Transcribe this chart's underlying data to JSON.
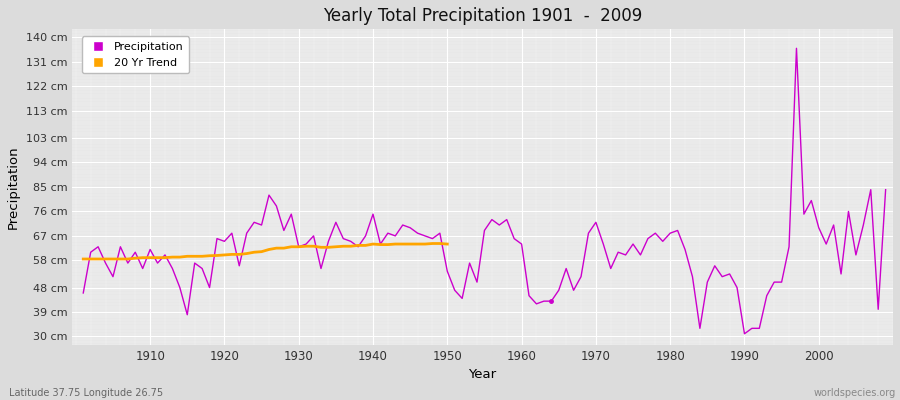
{
  "title": "Yearly Total Precipitation 1901  -  2009",
  "xlabel": "Year",
  "ylabel": "Precipitation",
  "subtitle": "Latitude 37.75 Longitude 26.75",
  "watermark": "worldspecies.org",
  "line_color": "#CC00CC",
  "trend_color": "#FFA500",
  "bg_color": "#DCDCDC",
  "plot_bg_color": "#E8E8E8",
  "ytick_labels": [
    "30 cm",
    "39 cm",
    "48 cm",
    "58 cm",
    "67 cm",
    "76 cm",
    "85 cm",
    "94 cm",
    "103 cm",
    "113 cm",
    "122 cm",
    "131 cm",
    "140 cm"
  ],
  "ytick_values": [
    30,
    39,
    48,
    58,
    67,
    76,
    85,
    94,
    103,
    113,
    122,
    131,
    140
  ],
  "ylim": [
    27,
    143
  ],
  "xlim": [
    1899.5,
    2010
  ],
  "years": [
    1901,
    1902,
    1903,
    1904,
    1905,
    1906,
    1907,
    1908,
    1909,
    1910,
    1911,
    1912,
    1913,
    1914,
    1915,
    1916,
    1917,
    1918,
    1919,
    1920,
    1921,
    1922,
    1923,
    1924,
    1925,
    1926,
    1927,
    1928,
    1929,
    1930,
    1931,
    1932,
    1933,
    1934,
    1935,
    1936,
    1937,
    1938,
    1939,
    1940,
    1941,
    1942,
    1943,
    1944,
    1945,
    1946,
    1947,
    1948,
    1949,
    1950,
    1951,
    1952,
    1953,
    1954,
    1955,
    1956,
    1957,
    1958,
    1959,
    1960,
    1961,
    1962,
    1963,
    1964,
    1965,
    1966,
    1967,
    1968,
    1969,
    1970,
    1971,
    1972,
    1973,
    1974,
    1975,
    1976,
    1977,
    1978,
    1979,
    1980,
    1981,
    1982,
    1983,
    1984,
    1985,
    1986,
    1987,
    1988,
    1989,
    1990,
    1991,
    1992,
    1993,
    1994,
    1995,
    1996,
    1997,
    1998,
    1999,
    2000,
    2001,
    2002,
    2003,
    2004,
    2005,
    2006,
    2007,
    2008,
    2009
  ],
  "precip": [
    46,
    61,
    63,
    57,
    52,
    63,
    57,
    61,
    55,
    62,
    57,
    60,
    55,
    48,
    38,
    57,
    55,
    48,
    66,
    65,
    68,
    56,
    68,
    72,
    71,
    82,
    78,
    69,
    75,
    63,
    64,
    67,
    55,
    65,
    72,
    66,
    65,
    63,
    67,
    75,
    64,
    68,
    67,
    71,
    70,
    68,
    67,
    66,
    68,
    54,
    47,
    44,
    57,
    50,
    69,
    73,
    71,
    73,
    66,
    64,
    45,
    42,
    43,
    43,
    47,
    55,
    47,
    52,
    68,
    72,
    64,
    55,
    61,
    60,
    64,
    60,
    66,
    68,
    65,
    68,
    69,
    62,
    52,
    33,
    50,
    56,
    52,
    53,
    48,
    31,
    33,
    33,
    45,
    50,
    50,
    63,
    136,
    75,
    80,
    70,
    64,
    71,
    53,
    76,
    60,
    71,
    84,
    40,
    84
  ],
  "trend_years": [
    1901,
    1902,
    1903,
    1904,
    1905,
    1906,
    1907,
    1908,
    1909,
    1910,
    1911,
    1912,
    1913,
    1914,
    1915,
    1916,
    1917,
    1918,
    1919,
    1920,
    1921,
    1922,
    1923,
    1924,
    1925,
    1926,
    1927,
    1928,
    1929,
    1930,
    1931,
    1932,
    1933,
    1934,
    1935,
    1936,
    1937,
    1938,
    1939,
    1940,
    1941,
    1942,
    1943,
    1944,
    1945,
    1946,
    1947,
    1948,
    1949,
    1950
  ],
  "trend_values": [
    58.5,
    58.5,
    58.5,
    58.5,
    58.5,
    58.5,
    58.5,
    58.8,
    59.0,
    59.0,
    59.0,
    59.0,
    59.2,
    59.2,
    59.5,
    59.5,
    59.5,
    59.7,
    59.8,
    60.0,
    60.2,
    60.2,
    60.5,
    61.0,
    61.2,
    62.0,
    62.5,
    62.5,
    63.0,
    63.0,
    63.2,
    63.2,
    62.8,
    62.8,
    63.0,
    63.2,
    63.2,
    63.5,
    63.5,
    64.0,
    63.8,
    63.8,
    64.0,
    64.0,
    64.0,
    64.0,
    64.0,
    64.2,
    64.2,
    64.0
  ],
  "outlier_year": 1964,
  "outlier_value": 43,
  "xticks": [
    1910,
    1920,
    1930,
    1940,
    1950,
    1960,
    1970,
    1980,
    1990,
    2000
  ]
}
